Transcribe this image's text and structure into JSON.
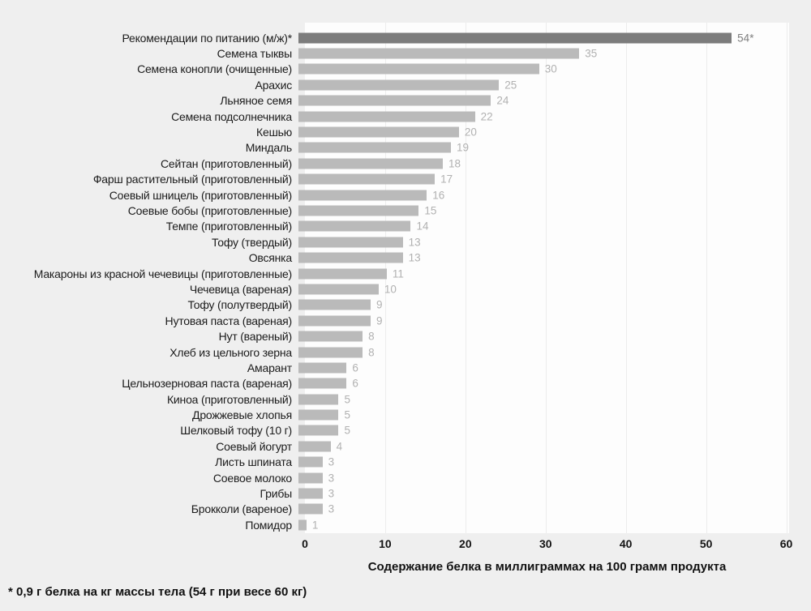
{
  "chart_data": {
    "type": "bar",
    "orientation": "horizontal",
    "title": "",
    "xlabel": "Содержание белка в миллиграммах на 100 грамм продукта",
    "xlim": [
      0,
      60
    ],
    "xticks": [
      "0",
      "10",
      "20",
      "30",
      "40",
      "50",
      "60"
    ],
    "grid": "vertical",
    "highlight_index": 0,
    "categories": [
      "Рекомендации по питанию (м/ж)*",
      "Семена тыквы",
      "Семена конопли (очищенные)",
      "Арахис",
      "Льняное семя",
      "Семена подсолнечника",
      "Кешью",
      "Миндаль",
      "Сейтан (приготовленный)",
      "Фарш растительный (приготовленный)",
      "Соевый шницель (приготовленный)",
      "Соевые бобы (приготовленные)",
      "Темпе (приготовленный)",
      "Тофу (твердый)",
      "Овсянка",
      "Макароны из красной чечевицы (приготовленные)",
      "Чечевица (вареная)",
      "Тофу (полутвердый)",
      "Нутовая паста (вареная)",
      "Нут (вареный)",
      "Хлеб из цельного зерна",
      "Амарант",
      "Цельнозерновая паста (вареная)",
      "Киноа (приготовленный)",
      "Дрожжевые хлопья",
      "Шелковый тофу (10 г)",
      "Соевый йогурт",
      "Листь шпината",
      "Соевое молоко",
      "Грибы",
      "Брокколи (вареное)",
      "Помидор"
    ],
    "values": [
      54,
      35,
      30,
      25,
      24,
      22,
      20,
      19,
      18,
      17,
      16,
      15,
      14,
      13,
      13,
      11,
      10,
      9,
      9,
      8,
      8,
      6,
      6,
      5,
      5,
      5,
      4,
      3,
      3,
      3,
      3,
      1
    ],
    "value_labels": [
      "54*",
      "35",
      "30",
      "25",
      "24",
      "22",
      "20",
      "19",
      "18",
      "17",
      "16",
      "15",
      "14",
      "13",
      "13",
      "11",
      "10",
      "9",
      "9",
      "8",
      "8",
      "6",
      "6",
      "5",
      "5",
      "5",
      "4",
      "3",
      "3",
      "3",
      "3",
      "1"
    ],
    "colors": {
      "bar": "#bababa",
      "highlight_bar": "#7c7c7c",
      "value_label": "#b1b1b1",
      "highlight_value_label": "#7f7f7f",
      "background": "#efefef",
      "plot_background": "#fdfdfd",
      "gridline": "#ededed"
    }
  },
  "footnote": "* 0,9 г белка на кг массы тела (54 г при весе 60 кг)"
}
